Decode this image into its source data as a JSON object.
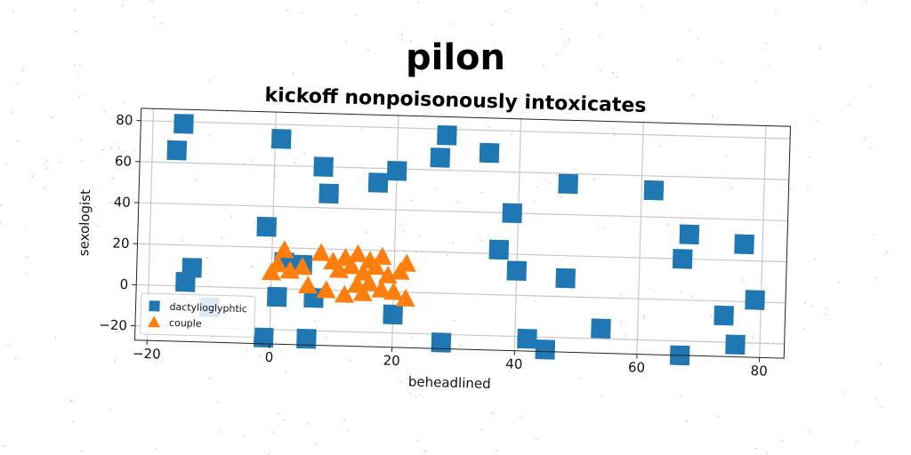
{
  "chart_data": {
    "type": "scatter",
    "title": "pilon",
    "subtitle": "kickoff nonpoisonously intoxicates",
    "xlabel": "beheadlined",
    "ylabel": "sexologist",
    "xlim": [
      -22,
      84
    ],
    "ylim": [
      -27,
      86
    ],
    "xticks": [
      -20,
      0,
      20,
      40,
      60,
      80
    ],
    "yticks": [
      -20,
      0,
      20,
      40,
      60,
      80
    ],
    "grid": true,
    "legend_position": "lower-left",
    "series": [
      {
        "name": "dactylioglyphtic",
        "marker": "square",
        "color": "#1f77b4",
        "points": [
          [
            -15,
            79
          ],
          [
            -16,
            66
          ],
          [
            1,
            73
          ],
          [
            28,
            77
          ],
          [
            35,
            69
          ],
          [
            27,
            66
          ],
          [
            8,
            60
          ],
          [
            17,
            53
          ],
          [
            20,
            59
          ],
          [
            9,
            47
          ],
          [
            48,
            55
          ],
          [
            39,
            40
          ],
          [
            62,
            53
          ],
          [
            68,
            32
          ],
          [
            67,
            20
          ],
          [
            77,
            28
          ],
          [
            37,
            22
          ],
          [
            40,
            12
          ],
          [
            48,
            9
          ],
          [
            -1,
            30
          ],
          [
            2,
            13
          ],
          [
            5,
            12
          ],
          [
            -13,
            9
          ],
          [
            -14,
            2
          ],
          [
            1,
            -4
          ],
          [
            7,
            -4
          ],
          [
            20,
            -11
          ],
          [
            -10,
            -10
          ],
          [
            -1,
            -24
          ],
          [
            6,
            -24
          ],
          [
            28,
            -24
          ],
          [
            42,
            -21
          ],
          [
            45,
            -26
          ],
          [
            54,
            -15
          ],
          [
            67,
            -27
          ],
          [
            74,
            -7
          ],
          [
            76,
            -21
          ],
          [
            79,
            1
          ]
        ]
      },
      {
        "name": "couple",
        "marker": "triangle",
        "color": "#ff7f0e",
        "points": [
          [
            2,
            19
          ],
          [
            0,
            8
          ],
          [
            1,
            12
          ],
          [
            3,
            9
          ],
          [
            5,
            11
          ],
          [
            8,
            18
          ],
          [
            10,
            14
          ],
          [
            12,
            16
          ],
          [
            14,
            18
          ],
          [
            16,
            15
          ],
          [
            18,
            17
          ],
          [
            11,
            10
          ],
          [
            13,
            12
          ],
          [
            15,
            9
          ],
          [
            17,
            12
          ],
          [
            19,
            8
          ],
          [
            22,
            14
          ],
          [
            21,
            10
          ],
          [
            6,
            2
          ],
          [
            9,
            0
          ],
          [
            12,
            -2
          ],
          [
            15,
            -1
          ],
          [
            18,
            1
          ],
          [
            20,
            0
          ],
          [
            22,
            -3
          ],
          [
            14,
            3
          ],
          [
            16,
            4
          ]
        ]
      }
    ]
  }
}
